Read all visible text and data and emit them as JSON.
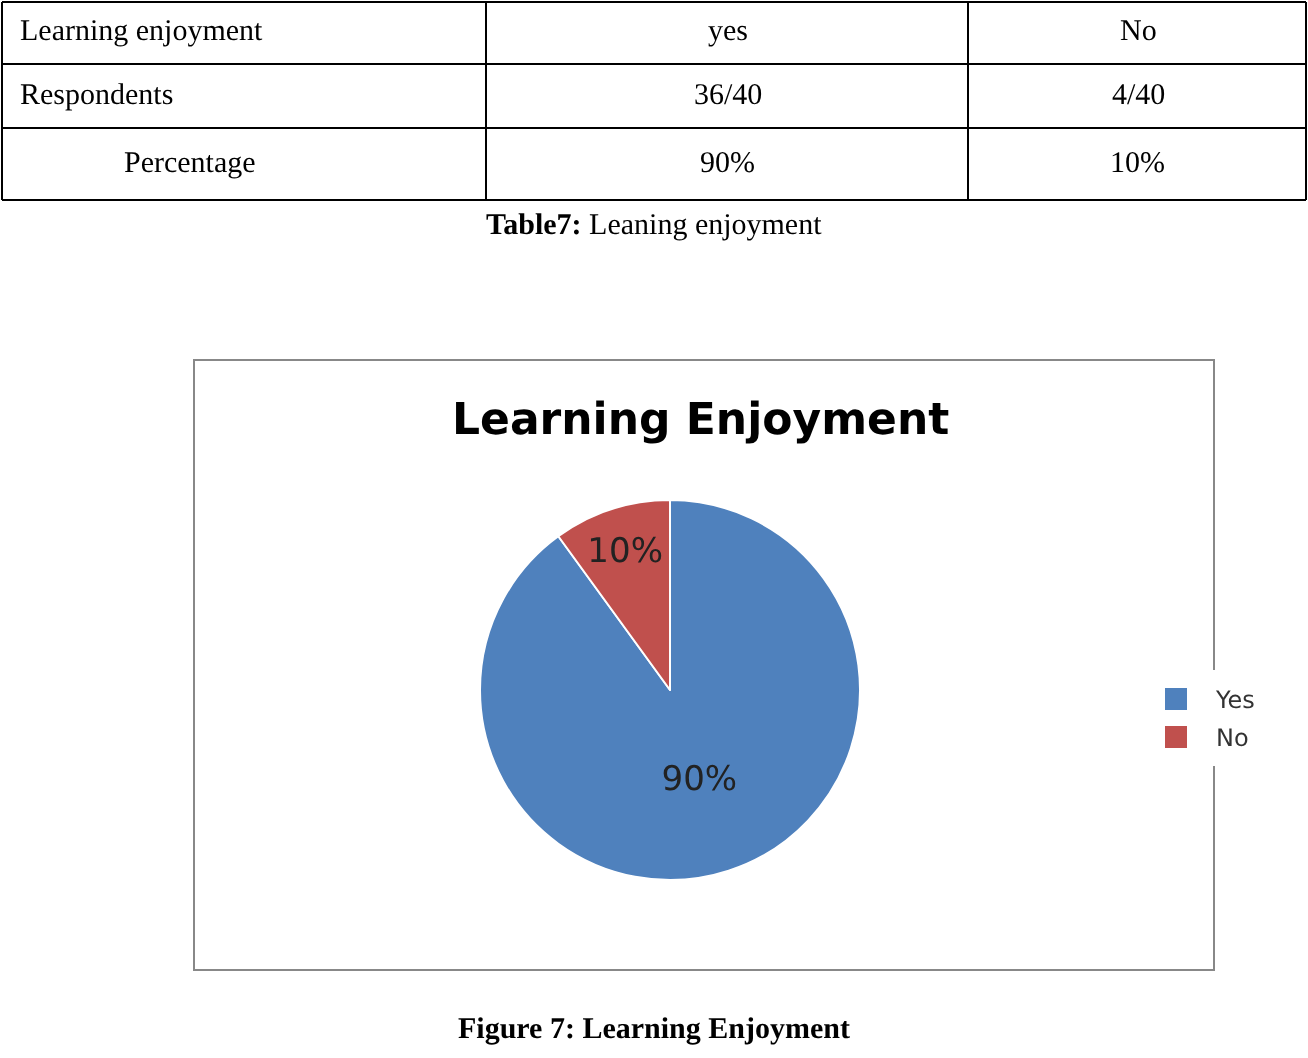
{
  "chart_data": {
    "type": "pie",
    "title": "Learning Enjoyment",
    "categories": [
      "Yes",
      "No"
    ],
    "values": [
      90,
      10
    ],
    "colors": [
      "#4f81bd",
      "#c0504d"
    ],
    "value_labels": [
      "90%",
      "10%"
    ],
    "legend": "right",
    "annotations": [
      "Learning enjoyment",
      "yes",
      "No",
      "Respondents",
      "36/40",
      "4/40",
      "Percentage",
      "90%",
      "10%",
      "Table7: Leaning enjoyment",
      "Figure 7: Learning Enjoyment"
    ]
  }
}
